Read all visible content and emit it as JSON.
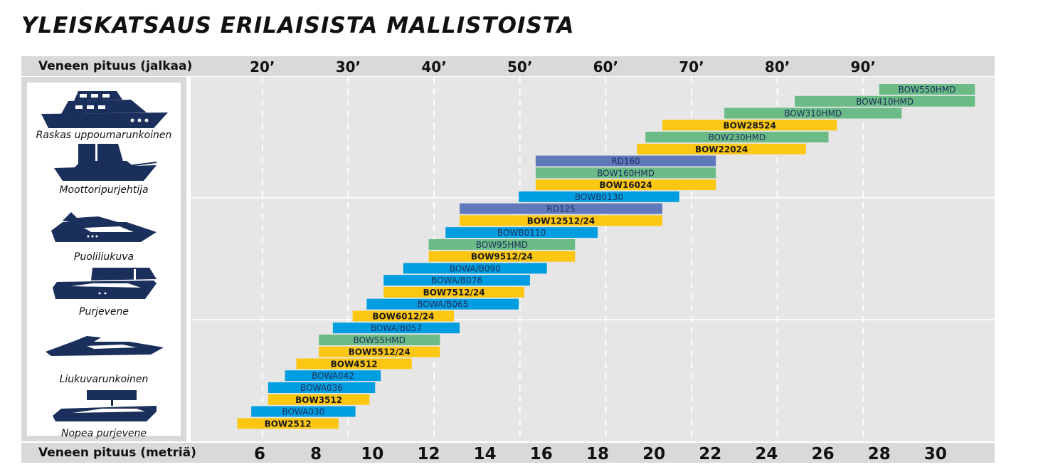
{
  "title": "YLEISKATSAUS ERILAISISTA MALLISTOISTA",
  "top_axis_label": "Veneen pituus (jalkaa)",
  "bottom_axis_label": "Veneen pituus (metriä)",
  "boat_types": [
    {
      "label": "Raskas uppoumarunkoinen",
      "icon": "motor-yacht-icon"
    },
    {
      "label": "Moottoripurjehtija",
      "icon": "motorsailer-icon"
    },
    {
      "label": "Puoliliukuva",
      "icon": "semi-planing-boat-icon"
    },
    {
      "label": "Purjevene",
      "icon": "sailboat-icon"
    },
    {
      "label": "Liukuvarunkoinen",
      "icon": "planing-boat-icon"
    },
    {
      "label": "Nopea purjevene",
      "icon": "fast-sailboat-icon"
    }
  ],
  "colors": {
    "yellow": "#fbc713",
    "blue": "#009ee0",
    "green": "#6bbb86",
    "purple": "#5f79bb",
    "navy": "#1b2f5c",
    "band": "#d9d9d9",
    "plot_bg": "#e6e6e6"
  },
  "chart_data": {
    "type": "bar",
    "orientation": "horizontal-range",
    "x_unit_top": "feet",
    "x_unit_bottom": "meters",
    "top_ticks": [
      "20’",
      "30’",
      "40’",
      "50’",
      "60’",
      "70’",
      "80’",
      "90’"
    ],
    "top_tick_values_ft": [
      20,
      30,
      40,
      50,
      60,
      70,
      80,
      90
    ],
    "bottom_ticks": [
      "6",
      "8",
      "10",
      "12",
      "14",
      "16",
      "18",
      "20",
      "22",
      "24",
      "26",
      "28",
      "30"
    ],
    "bottom_tick_values_m": [
      6,
      8,
      10,
      12,
      14,
      16,
      18,
      20,
      22,
      24,
      26,
      28,
      30
    ],
    "xlim_m": [
      4.8,
      31.5
    ],
    "gridlines": "dashed-vertical-at-feet-ticks",
    "bars": [
      {
        "name": "BOW550HMD",
        "start_m": 28.0,
        "end_m": 31.4,
        "color": "green"
      },
      {
        "name": "BOW410HMD",
        "start_m": 25.0,
        "end_m": 31.4,
        "color": "green"
      },
      {
        "name": "BOW310HMD",
        "start_m": 22.5,
        "end_m": 28.8,
        "color": "green"
      },
      {
        "name": "BOW28524",
        "start_m": 20.3,
        "end_m": 26.5,
        "color": "yellow"
      },
      {
        "name": "BOW230HMD",
        "start_m": 19.7,
        "end_m": 26.2,
        "color": "green"
      },
      {
        "name": "BOW22024",
        "start_m": 19.4,
        "end_m": 25.4,
        "color": "yellow"
      },
      {
        "name": "RD160",
        "start_m": 15.8,
        "end_m": 22.2,
        "color": "purple"
      },
      {
        "name": "BOW160HMD",
        "start_m": 15.8,
        "end_m": 22.2,
        "color": "green"
      },
      {
        "name": "BOW16024",
        "start_m": 15.8,
        "end_m": 22.2,
        "color": "yellow"
      },
      {
        "name": "BOWB0130",
        "start_m": 15.2,
        "end_m": 20.9,
        "color": "blue"
      },
      {
        "name": "RD125",
        "start_m": 13.1,
        "end_m": 20.3,
        "color": "purple"
      },
      {
        "name": "BOW12512/24",
        "start_m": 13.1,
        "end_m": 20.3,
        "color": "yellow"
      },
      {
        "name": "BOWB0110",
        "start_m": 12.6,
        "end_m": 18.0,
        "color": "blue"
      },
      {
        "name": "BOW95HMD",
        "start_m": 12.0,
        "end_m": 17.2,
        "color": "green"
      },
      {
        "name": "BOW9512/24",
        "start_m": 12.0,
        "end_m": 17.2,
        "color": "yellow"
      },
      {
        "name": "BOWA/B090",
        "start_m": 11.1,
        "end_m": 16.2,
        "color": "blue"
      },
      {
        "name": "BOWA/B076",
        "start_m": 10.4,
        "end_m": 15.6,
        "color": "blue"
      },
      {
        "name": "BOW7512/24",
        "start_m": 10.4,
        "end_m": 15.4,
        "color": "yellow"
      },
      {
        "name": "BOWA/B065",
        "start_m": 9.8,
        "end_m": 15.2,
        "color": "blue"
      },
      {
        "name": "BOW6012/24",
        "start_m": 9.3,
        "end_m": 12.9,
        "color": "yellow"
      },
      {
        "name": "BOWA/B057",
        "start_m": 8.6,
        "end_m": 13.1,
        "color": "blue"
      },
      {
        "name": "BOW55HMD",
        "start_m": 8.1,
        "end_m": 12.4,
        "color": "green"
      },
      {
        "name": "BOW5512/24",
        "start_m": 8.1,
        "end_m": 12.4,
        "color": "yellow"
      },
      {
        "name": "BOW4512",
        "start_m": 7.3,
        "end_m": 11.4,
        "color": "yellow"
      },
      {
        "name": "BOWA042",
        "start_m": 6.9,
        "end_m": 10.3,
        "color": "blue"
      },
      {
        "name": "BOWA036",
        "start_m": 6.3,
        "end_m": 10.1,
        "color": "blue"
      },
      {
        "name": "BOW3512",
        "start_m": 6.3,
        "end_m": 9.9,
        "color": "yellow"
      },
      {
        "name": "BOWA030",
        "start_m": 5.7,
        "end_m": 9.4,
        "color": "blue"
      },
      {
        "name": "BOW2512",
        "start_m": 5.2,
        "end_m": 8.8,
        "color": "yellow"
      }
    ]
  }
}
